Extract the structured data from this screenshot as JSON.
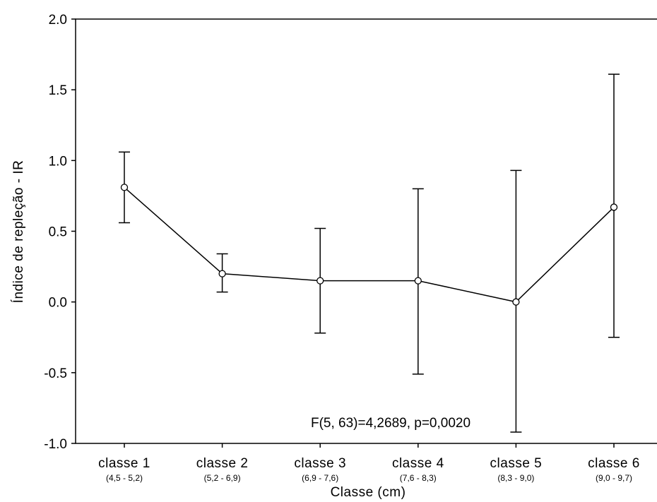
{
  "chart_data": {
    "type": "line",
    "title": "",
    "xlabel": "Classe (cm)",
    "ylabel": "Índice de repleção - IR",
    "categories": [
      "classe 1",
      "classe 2",
      "classe 3",
      "classe 4",
      "classe 5",
      "classe 6"
    ],
    "category_ranges": [
      "(4,5 - 5,2)",
      "(5,2 - 6,9)",
      "(6,9 - 7,6)",
      "(7,6 - 8,3)",
      "(8,3 - 9,0)",
      "(9,0 - 9,7)"
    ],
    "series": [
      {
        "values": [
          0.81,
          0.2,
          0.15,
          0.15,
          0.0,
          0.67
        ],
        "error_low": [
          0.56,
          0.07,
          -0.22,
          -0.51,
          -0.92,
          -0.25
        ],
        "error_high": [
          1.06,
          0.34,
          0.52,
          0.8,
          0.93,
          1.61
        ]
      }
    ],
    "ylim": [
      -1.0,
      2.0
    ],
    "yticks": [
      "-1.0",
      "-0.5",
      "0.0",
      "0.5",
      "1.0",
      "1.5",
      "2.0"
    ],
    "annotation": "F(5, 63)=4,2689, p=0,0020",
    "grid": false,
    "legend": "none",
    "colors": {
      "line": "#000000",
      "marker_fill": "#ffffff"
    }
  }
}
